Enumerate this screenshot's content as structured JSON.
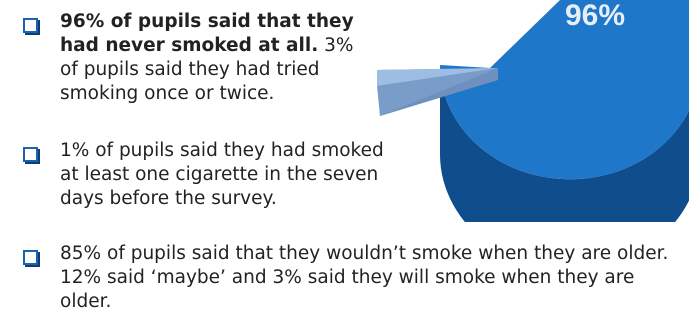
{
  "bullets": {
    "b1": {
      "bold": "96% of pupils said that they had never smoked at all.",
      "text": " 3% of pupils said they had tried smoking once or twice."
    },
    "b2": {
      "text": "1% of pupils said they had smoked at least one cigarette in the seven days before the survey."
    },
    "b3": {
      "text": "85% of pupils said that they wouldn’t smoke when they are older. 12% said ‘maybe’ and 3% said they will smoke when they are older."
    }
  },
  "chart_data": {
    "type": "pie",
    "slices": [
      {
        "value": 96,
        "label": "96%",
        "color": "#1f77c9"
      },
      {
        "value": 3,
        "label": "",
        "color": "#8fb3dc"
      },
      {
        "value": 1,
        "label": "",
        "color": "#6f8fbf"
      }
    ]
  },
  "colors": {
    "bullet_border": "#1a63b0",
    "pie_main": "#1f77c9",
    "pie_side": "#104d8c",
    "pie_slice_light": "#9dbde3",
    "pie_slice_side": "#6f8fbf",
    "text": "#222222"
  }
}
